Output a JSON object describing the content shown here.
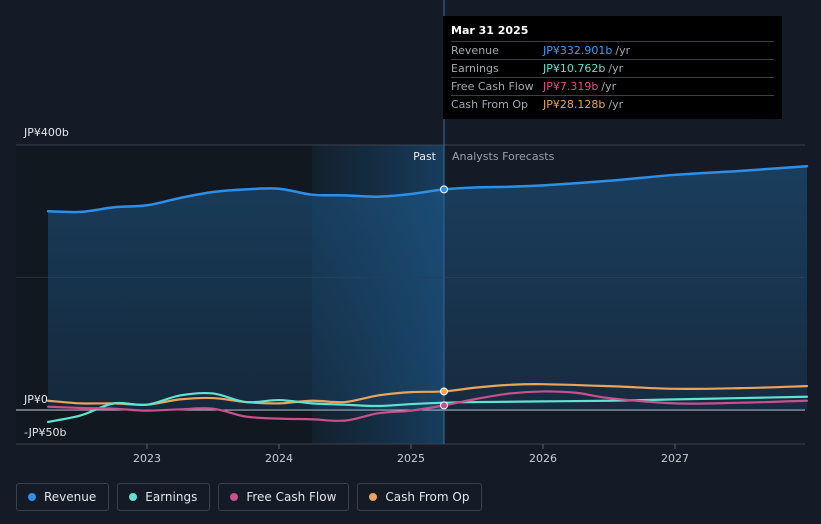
{
  "tooltip": {
    "date": "Mar 31 2025",
    "rows": [
      {
        "label": "Revenue",
        "value": "JP¥332.901b",
        "unit": "/yr",
        "color": "#3b9ef2"
      },
      {
        "label": "Earnings",
        "value": "JP¥10.762b",
        "unit": "/yr",
        "color": "#5fe3d0"
      },
      {
        "label": "Free Cash Flow",
        "value": "JP¥7.319b",
        "unit": "/yr",
        "color": "#d9508b"
      },
      {
        "label": "Cash From Op",
        "value": "JP¥28.128b",
        "unit": "/yr",
        "color": "#e9a55a"
      }
    ]
  },
  "labels": {
    "past": "Past",
    "forecast": "Analysts Forecasts"
  },
  "legend": [
    {
      "label": "Revenue",
      "color": "#2d8fe8"
    },
    {
      "label": "Earnings",
      "color": "#5fe3d0"
    },
    {
      "label": "Free Cash Flow",
      "color": "#c9508b"
    },
    {
      "label": "Cash From Op",
      "color": "#e9a55a"
    }
  ],
  "chart_data": {
    "type": "line",
    "title": "",
    "xlabel": "",
    "ylabel": "",
    "currency": "JPY",
    "unit": "b",
    "y_tick_labels": [
      "JP¥400b",
      "JP¥0",
      "-JP¥50b"
    ],
    "y_ticks": [
      400,
      0,
      -50
    ],
    "ylim": [
      -50,
      400
    ],
    "xlim": [
      2022.25,
      2028.0
    ],
    "x_tick_labels": [
      "2023",
      "2024",
      "2025",
      "2026",
      "2027"
    ],
    "x_ticks": [
      2023,
      2024,
      2025,
      2026,
      2027
    ],
    "divider_x": 2025.25,
    "shaded_past_start": 2024.25,
    "series": [
      {
        "name": "Revenue",
        "color": "#2d8fe8",
        "points": [
          [
            2022.25,
            300
          ],
          [
            2022.5,
            299
          ],
          [
            2022.75,
            306
          ],
          [
            2023.0,
            309
          ],
          [
            2023.25,
            320
          ],
          [
            2023.5,
            329
          ],
          [
            2023.75,
            333
          ],
          [
            2024.0,
            334
          ],
          [
            2024.25,
            325
          ],
          [
            2024.5,
            324
          ],
          [
            2024.75,
            322
          ],
          [
            2025.0,
            326
          ],
          [
            2025.25,
            333
          ],
          [
            2025.5,
            336
          ],
          [
            2025.75,
            337
          ],
          [
            2026.0,
            339
          ],
          [
            2026.5,
            346
          ],
          [
            2027.0,
            355
          ],
          [
            2027.5,
            361
          ],
          [
            2028.0,
            368
          ]
        ]
      },
      {
        "name": "Earnings",
        "color": "#5fe3d0",
        "points": [
          [
            2022.25,
            -18
          ],
          [
            2022.5,
            -8
          ],
          [
            2022.75,
            10
          ],
          [
            2023.0,
            8
          ],
          [
            2023.25,
            22
          ],
          [
            2023.5,
            25
          ],
          [
            2023.75,
            12
          ],
          [
            2024.0,
            15
          ],
          [
            2024.25,
            10
          ],
          [
            2024.5,
            8
          ],
          [
            2024.75,
            6
          ],
          [
            2025.0,
            9
          ],
          [
            2025.25,
            11
          ],
          [
            2025.5,
            12
          ],
          [
            2026.0,
            13
          ],
          [
            2026.5,
            14
          ],
          [
            2027.0,
            16
          ],
          [
            2027.5,
            18
          ],
          [
            2028.0,
            20
          ]
        ]
      },
      {
        "name": "Free Cash Flow",
        "color": "#c9508b",
        "points": [
          [
            2022.25,
            5
          ],
          [
            2022.5,
            3
          ],
          [
            2022.75,
            2
          ],
          [
            2023.0,
            -1
          ],
          [
            2023.25,
            1
          ],
          [
            2023.5,
            2
          ],
          [
            2023.75,
            -10
          ],
          [
            2024.0,
            -13
          ],
          [
            2024.25,
            -14
          ],
          [
            2024.5,
            -16
          ],
          [
            2024.75,
            -5
          ],
          [
            2025.0,
            -1
          ],
          [
            2025.25,
            7
          ],
          [
            2025.5,
            17
          ],
          [
            2025.75,
            25
          ],
          [
            2026.0,
            28
          ],
          [
            2026.25,
            26
          ],
          [
            2026.5,
            18
          ],
          [
            2027.0,
            10
          ],
          [
            2027.5,
            11
          ],
          [
            2028.0,
            14
          ]
        ]
      },
      {
        "name": "Cash From Op",
        "color": "#e9a55a",
        "points": [
          [
            2022.25,
            14
          ],
          [
            2022.5,
            10
          ],
          [
            2022.75,
            10
          ],
          [
            2023.0,
            8
          ],
          [
            2023.25,
            16
          ],
          [
            2023.5,
            18
          ],
          [
            2023.75,
            12
          ],
          [
            2024.0,
            10
          ],
          [
            2024.25,
            14
          ],
          [
            2024.5,
            12
          ],
          [
            2024.75,
            22
          ],
          [
            2025.0,
            27
          ],
          [
            2025.25,
            28
          ],
          [
            2025.5,
            34
          ],
          [
            2025.75,
            38
          ],
          [
            2026.0,
            39
          ],
          [
            2026.5,
            36
          ],
          [
            2027.0,
            32
          ],
          [
            2027.5,
            33
          ],
          [
            2028.0,
            36
          ]
        ]
      }
    ],
    "highlight_x": 2025.25
  }
}
